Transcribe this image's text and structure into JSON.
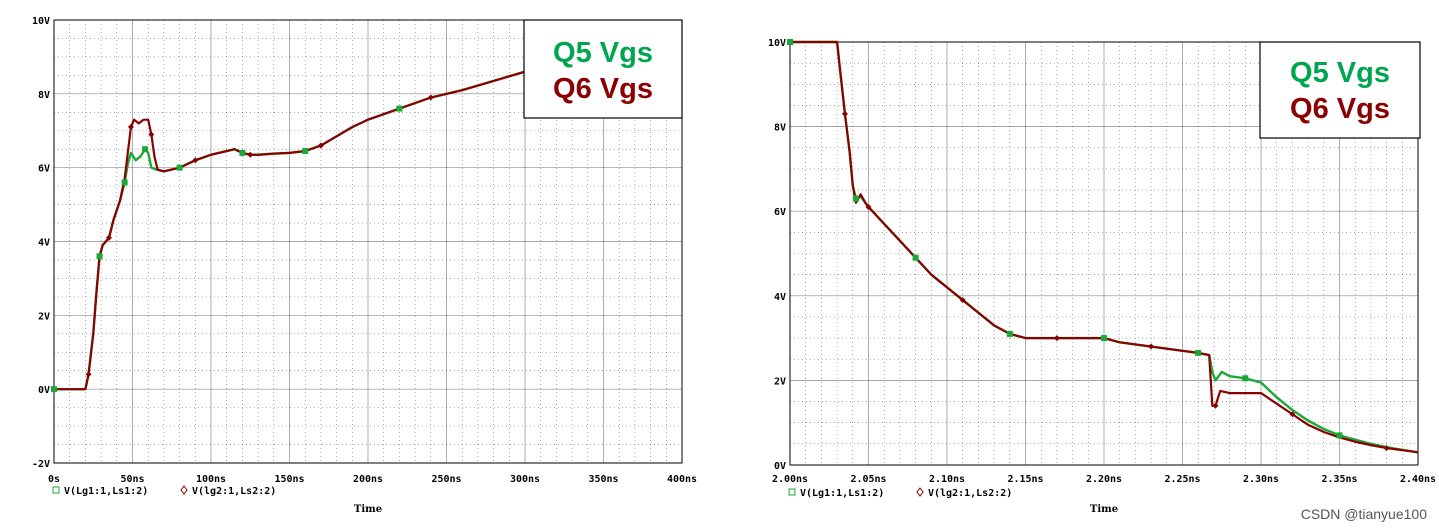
{
  "colors": {
    "q5": "#1aa838",
    "q6": "#8b0000",
    "grid_major": "#000000",
    "grid_minor": "#000000"
  },
  "watermark": "CSDN @tianyue100",
  "chart_data": [
    {
      "type": "line",
      "id": "left",
      "xlabel": "Time",
      "xlim": [
        0,
        400
      ],
      "ylim": [
        -2,
        10
      ],
      "x_ticks": [
        0,
        50,
        100,
        150,
        200,
        250,
        300,
        350,
        400
      ],
      "x_tick_labels": [
        "0s",
        "50ns",
        "100ns",
        "150ns",
        "200ns",
        "250ns",
        "300ns",
        "350ns",
        "400ns"
      ],
      "y_ticks": [
        -2,
        0,
        2,
        4,
        6,
        8,
        10
      ],
      "y_tick_labels": [
        "-2V",
        "0V",
        "2V",
        "4V",
        "6V",
        "8V",
        "10V"
      ],
      "grid": true,
      "legend_box": {
        "placement": "top-right",
        "lines": [
          "Q5 Vgs",
          "Q6 Vgs"
        ]
      },
      "legend_bottom": [
        {
          "symbol": "□",
          "label": "V(Lg1:1,Ls1:2)"
        },
        {
          "symbol": "◇",
          "label": "V(lg2:1,Ls2:2)"
        }
      ],
      "series": [
        {
          "name": "V(Lg1:1,Ls1:2)",
          "x": [
            0,
            20,
            22,
            25,
            27,
            29,
            31,
            35,
            38,
            42,
            45,
            47,
            49,
            52,
            55,
            58,
            60,
            62,
            65,
            70,
            80,
            90,
            100,
            110,
            115,
            120,
            125,
            130,
            140,
            150,
            160,
            170,
            180,
            190,
            200,
            220,
            240,
            260,
            280,
            300,
            320,
            350,
            400
          ],
          "y": [
            0,
            0,
            0.4,
            1.5,
            2.6,
            3.6,
            3.9,
            4.1,
            4.6,
            5.1,
            5.6,
            6.1,
            6.4,
            6.2,
            6.3,
            6.5,
            6.4,
            6.0,
            5.95,
            5.9,
            6.0,
            6.2,
            6.35,
            6.45,
            6.5,
            6.4,
            6.35,
            6.35,
            6.38,
            6.4,
            6.45,
            6.6,
            6.85,
            7.1,
            7.3,
            7.6,
            7.9,
            8.1,
            8.35,
            8.6,
            8.85,
            9.1,
            9.45
          ]
        },
        {
          "name": "V(lg2:1,Ls2:2)",
          "x": [
            0,
            20,
            22,
            25,
            27,
            29,
            31,
            35,
            38,
            42,
            45,
            47,
            49,
            51,
            54,
            57,
            60,
            62,
            64,
            66,
            70,
            80,
            90,
            100,
            110,
            115,
            120,
            125,
            130,
            140,
            150,
            160,
            170,
            180,
            190,
            200,
            220,
            240,
            260,
            280,
            300,
            320,
            350,
            400
          ],
          "y": [
            0,
            0,
            0.4,
            1.5,
            2.6,
            3.6,
            3.9,
            4.1,
            4.6,
            5.1,
            5.7,
            6.4,
            7.1,
            7.3,
            7.2,
            7.3,
            7.3,
            6.9,
            6.3,
            5.95,
            5.9,
            6.0,
            6.2,
            6.35,
            6.45,
            6.5,
            6.4,
            6.35,
            6.35,
            6.38,
            6.4,
            6.45,
            6.6,
            6.85,
            7.1,
            7.3,
            7.6,
            7.9,
            8.1,
            8.35,
            8.6,
            8.85,
            9.1,
            9.45
          ]
        }
      ]
    },
    {
      "type": "line",
      "id": "right",
      "xlabel": "Time",
      "xlim": [
        2.0,
        2.4
      ],
      "ylim": [
        0,
        10
      ],
      "x_ticks": [
        2.0,
        2.05,
        2.1,
        2.15,
        2.2,
        2.25,
        2.3,
        2.35,
        2.4
      ],
      "x_tick_labels": [
        "2.00ns",
        "2.05ns",
        "2.10ns",
        "2.15ns",
        "2.20ns",
        "2.25ns",
        "2.30ns",
        "2.35ns",
        "2.40ns"
      ],
      "y_ticks": [
        0,
        2,
        4,
        6,
        8,
        10
      ],
      "y_tick_labels": [
        "0V",
        "2V",
        "4V",
        "6V",
        "8V",
        "10V"
      ],
      "grid": true,
      "legend_box": {
        "placement": "top-right",
        "lines": [
          "Q5 Vgs",
          "Q6 Vgs"
        ]
      },
      "legend_bottom": [
        {
          "symbol": "□",
          "label": "V(Lg1:1,Ls1:2)"
        },
        {
          "symbol": "◇",
          "label": "V(lg2:1,Ls2:2)"
        }
      ],
      "series": [
        {
          "name": "V(Lg1:1,Ls1:2)",
          "x": [
            2.0,
            2.03,
            2.032,
            2.035,
            2.038,
            2.04,
            2.042,
            2.045,
            2.048,
            2.05,
            2.06,
            2.07,
            2.08,
            2.09,
            2.1,
            2.11,
            2.12,
            2.13,
            2.14,
            2.15,
            2.16,
            2.17,
            2.18,
            2.19,
            2.2,
            2.21,
            2.22,
            2.23,
            2.24,
            2.25,
            2.26,
            2.267,
            2.269,
            2.271,
            2.275,
            2.28,
            2.29,
            2.3,
            2.31,
            2.32,
            2.33,
            2.34,
            2.35,
            2.36,
            2.37,
            2.38,
            2.39,
            2.4
          ],
          "y": [
            10,
            10,
            9.3,
            8.3,
            7.4,
            6.6,
            6.3,
            6.35,
            6.2,
            6.1,
            5.7,
            5.3,
            4.9,
            4.5,
            4.2,
            3.9,
            3.6,
            3.3,
            3.1,
            3.0,
            3.0,
            3.0,
            3.0,
            3.0,
            3.0,
            2.9,
            2.85,
            2.8,
            2.75,
            2.7,
            2.65,
            2.6,
            2.2,
            2.0,
            2.2,
            2.1,
            2.05,
            1.95,
            1.6,
            1.3,
            1.05,
            0.85,
            0.7,
            0.6,
            0.5,
            0.42,
            0.36,
            0.3
          ]
        },
        {
          "name": "V(lg2:1,Ls2:2)",
          "x": [
            2.0,
            2.03,
            2.032,
            2.035,
            2.038,
            2.04,
            2.042,
            2.045,
            2.048,
            2.05,
            2.06,
            2.07,
            2.08,
            2.09,
            2.1,
            2.11,
            2.12,
            2.13,
            2.14,
            2.15,
            2.16,
            2.17,
            2.18,
            2.19,
            2.2,
            2.21,
            2.22,
            2.23,
            2.24,
            2.25,
            2.26,
            2.267,
            2.269,
            2.271,
            2.274,
            2.28,
            2.29,
            2.3,
            2.31,
            2.32,
            2.33,
            2.34,
            2.35,
            2.36,
            2.37,
            2.38,
            2.39,
            2.4
          ],
          "y": [
            10,
            10,
            9.3,
            8.3,
            7.4,
            6.6,
            6.2,
            6.4,
            6.2,
            6.1,
            5.7,
            5.3,
            4.9,
            4.5,
            4.2,
            3.9,
            3.6,
            3.3,
            3.1,
            3.0,
            3.0,
            3.0,
            3.0,
            3.0,
            3.0,
            2.9,
            2.85,
            2.8,
            2.75,
            2.7,
            2.65,
            2.6,
            1.4,
            1.4,
            1.75,
            1.7,
            1.7,
            1.7,
            1.45,
            1.2,
            0.95,
            0.78,
            0.65,
            0.55,
            0.47,
            0.4,
            0.35,
            0.3
          ]
        }
      ]
    }
  ]
}
